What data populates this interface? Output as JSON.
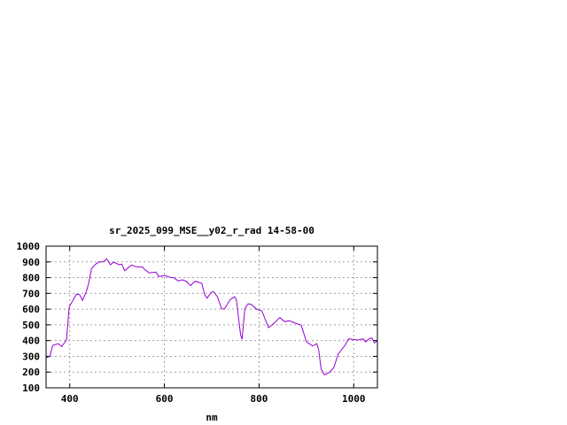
{
  "chart_data": {
    "type": "line",
    "title": "sr_2025_099_MSE__y02_r_rad 14-58-00",
    "xlabel": "nm",
    "ylabel": "",
    "xlim": [
      350,
      1050
    ],
    "ylim": [
      100,
      1000
    ],
    "xticks": [
      400,
      600,
      800,
      1000
    ],
    "yticks": [
      100,
      200,
      300,
      400,
      500,
      600,
      700,
      800,
      900,
      1000
    ],
    "grid": true,
    "line_color": "#9400d3",
    "series": [
      {
        "x": [
          350,
          358,
          364,
          376,
          383,
          393,
          399,
          406,
          414,
          421,
          427,
          435,
          440,
          446,
          454,
          462,
          471,
          478,
          486,
          493,
          504,
          510,
          516,
          531,
          540,
          554,
          558,
          568,
          582,
          588,
          601,
          613,
          620,
          629,
          638,
          646,
          655,
          665,
          679,
          685,
          690,
          699,
          704,
          712,
          721,
          727,
          739,
          748,
          752,
          761,
          764,
          770,
          777,
          784,
          795,
          806,
          820,
          832,
          844,
          854,
          864,
          876,
          889,
          900,
          913,
          922,
          926,
          931,
          938,
          948,
          958,
          967,
          983,
          989,
          1008,
          1020,
          1025,
          1032,
          1038,
          1044,
          1050
        ],
        "y": [
          290,
          300,
          370,
          380,
          362,
          404,
          617,
          651,
          695,
          692,
          655,
          711,
          764,
          857,
          884,
          900,
          900,
          919,
          882,
          899,
          882,
          886,
          844,
          880,
          869,
          867,
          852,
          830,
          835,
          807,
          814,
          801,
          799,
          779,
          786,
          777,
          749,
          777,
          764,
          692,
          670,
          707,
          711,
          679,
          601,
          601,
          661,
          678,
          661,
          436,
          408,
          604,
          634,
          629,
          599,
          589,
          482,
          511,
          546,
          520,
          526,
          511,
          498,
          392,
          366,
          380,
          342,
          220,
          183,
          197,
          229,
          314,
          376,
          411,
          404,
          411,
          392,
          411,
          417,
          385,
          398
        ]
      }
    ]
  }
}
